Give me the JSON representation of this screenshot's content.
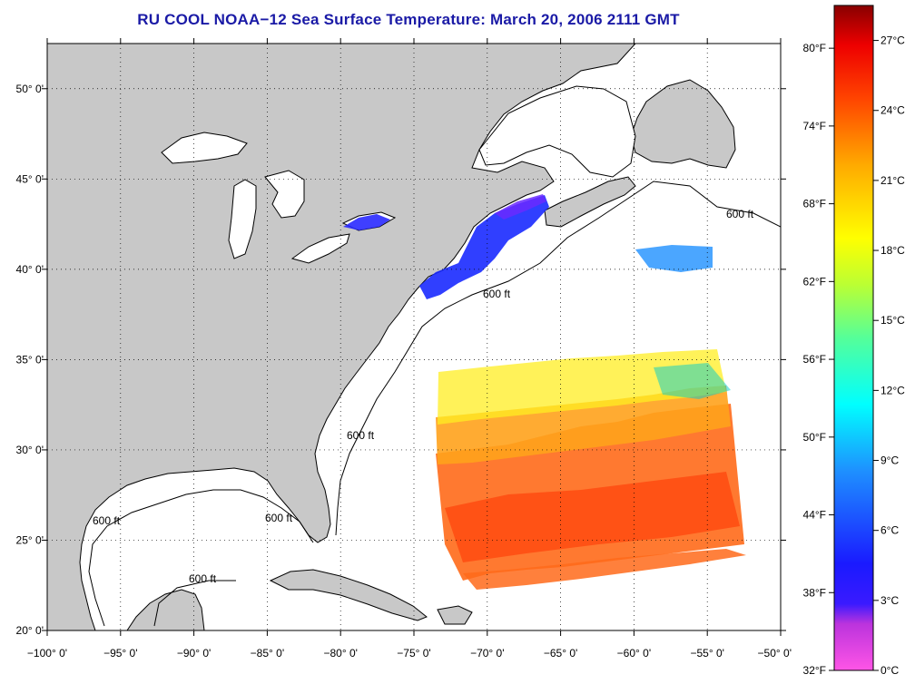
{
  "title": "RU COOL  NOAA−12  Sea Surface Temperature:  March 20, 2006 2111 GMT",
  "map": {
    "lon_range": [
      -100,
      -50
    ],
    "lat_range": [
      20,
      52.5
    ],
    "lon_ticks": [
      {
        "value": -100,
        "label": "−100° 0'"
      },
      {
        "value": -95,
        "label": "−95° 0'"
      },
      {
        "value": -90,
        "label": "−90° 0'"
      },
      {
        "value": -85,
        "label": "−85° 0'"
      },
      {
        "value": -80,
        "label": "−80° 0'"
      },
      {
        "value": -75,
        "label": "−75° 0'"
      },
      {
        "value": -70,
        "label": "−70° 0'"
      },
      {
        "value": -65,
        "label": "−65° 0'"
      },
      {
        "value": -60,
        "label": "−60° 0'"
      },
      {
        "value": -55,
        "label": "−55° 0'"
      },
      {
        "value": -50,
        "label": "−50° 0'"
      }
    ],
    "lat_ticks": [
      {
        "value": 20,
        "label": "20° 0'"
      },
      {
        "value": 25,
        "label": "25° 0'"
      },
      {
        "value": 30,
        "label": "30° 0'"
      },
      {
        "value": 35,
        "label": "35° 0'"
      },
      {
        "value": 40,
        "label": "40° 0'"
      },
      {
        "value": 45,
        "label": "45° 0'"
      },
      {
        "value": 50,
        "label": "50° 0'"
      }
    ],
    "grid": "dotted",
    "isobath_label": "600 ft",
    "land_color": "#c8c8c8",
    "ocean_color": "#ffffff"
  },
  "colorbar": {
    "fahrenheit_labels": [
      "80°F",
      "74°F",
      "68°F",
      "62°F",
      "56°F",
      "50°F",
      "44°F",
      "38°F",
      "32°F"
    ],
    "fahrenheit_values": [
      80,
      74,
      68,
      62,
      56,
      50,
      44,
      38,
      32
    ],
    "celsius_labels": [
      "27°C",
      "24°C",
      "21°C",
      "18°C",
      "15°C",
      "12°C",
      "9°C",
      "6°C",
      "3°C",
      "0°C"
    ],
    "celsius_values": [
      27,
      24,
      21,
      18,
      15,
      12,
      9,
      6,
      3,
      0
    ],
    "range_c": [
      0,
      28.5
    ],
    "colors": [
      "#ff55e6",
      "#9922dd",
      "#1a1aff",
      "#1e90ff",
      "#00ffff",
      "#55ff88",
      "#ccff22",
      "#ffff00",
      "#ffaa00",
      "#ff5500",
      "#ff0000",
      "#880000"
    ]
  }
}
